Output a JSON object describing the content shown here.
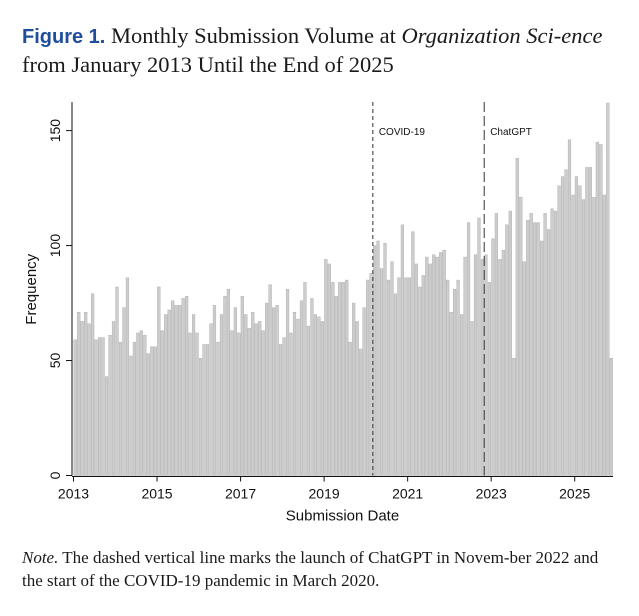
{
  "figure": {
    "label": "Figure 1.",
    "title_part1": "Monthly Submission Volume at ",
    "title_journal": "Organization Sci-ence",
    "title_part2": " from January 2013 Until the End of 2025"
  },
  "note": {
    "label": "Note.",
    "text": " The dashed vertical line marks the launch of ChatGPT in Novem-ber 2022 and the start of the COVID-19 pandemic in March 2020."
  },
  "chart_data": {
    "type": "bar",
    "title": "",
    "xlabel": "Submission Date",
    "ylabel": "Frequency",
    "x_start": "2013-01",
    "ylim": [
      0,
      162
    ],
    "yticks": [
      0,
      50,
      100,
      150
    ],
    "xticks": [
      "2013",
      "2015",
      "2017",
      "2019",
      "2021",
      "2023",
      "2025"
    ],
    "grid": false,
    "bar_color": "#cdcdcd",
    "annotations": [
      {
        "label": "COVID-19",
        "date": "2020-03"
      },
      {
        "label": "ChatGPT",
        "date": "2022-11"
      }
    ],
    "values": [
      59,
      71,
      67,
      71,
      66,
      79,
      59,
      60,
      60,
      43,
      61,
      67,
      82,
      58,
      73,
      86,
      52,
      58,
      62,
      63,
      61,
      53,
      56,
      56,
      82,
      63,
      70,
      72,
      76,
      74,
      74,
      77,
      78,
      62,
      70,
      62,
      51,
      57,
      57,
      66,
      74,
      58,
      70,
      78,
      81,
      63,
      73,
      62,
      78,
      70,
      64,
      71,
      66,
      67,
      63,
      75,
      83,
      73,
      74,
      57,
      60,
      81,
      62,
      71,
      68,
      76,
      84,
      65,
      77,
      70,
      69,
      67,
      94,
      92,
      84,
      78,
      84,
      84,
      85,
      58,
      75,
      67,
      55,
      73,
      85,
      88,
      100,
      102,
      90,
      101,
      85,
      93,
      79,
      86,
      109,
      86,
      86,
      106,
      92,
      82,
      87,
      95,
      92,
      96,
      95,
      97,
      98,
      85,
      71,
      81,
      85,
      70,
      95,
      110,
      67,
      96,
      112,
      94,
      96,
      84,
      103,
      114,
      94,
      98,
      109,
      115,
      51,
      138,
      121,
      93,
      111,
      114,
      110,
      110,
      102,
      114,
      107,
      116,
      115,
      126,
      130,
      133,
      146,
      122,
      130,
      126,
      120,
      134,
      134,
      121,
      145,
      144,
      122,
      162,
      51
    ]
  }
}
